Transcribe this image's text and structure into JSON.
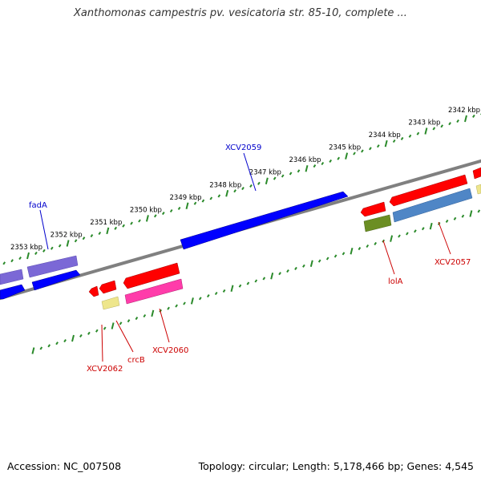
{
  "title": "Xanthomonas campestris pv. vesicatoria str. 85-10, complete ...",
  "footer": {
    "accession": "Accession: NC_007508",
    "info": "Topology: circular; Length: 5,178,466 bp; Genes: 4,545"
  },
  "ruler": {
    "unit_label": "kbp",
    "ticks": [
      {
        "kbp": 2342,
        "label": "2342 kbp"
      },
      {
        "kbp": 2343,
        "label": "2343 kbp"
      },
      {
        "kbp": 2344,
        "label": "2344 kbp"
      },
      {
        "kbp": 2345,
        "label": "2345 kbp"
      },
      {
        "kbp": 2346,
        "label": "2346 kbp"
      },
      {
        "kbp": 2347,
        "label": "2347 kbp"
      },
      {
        "kbp": 2348,
        "label": "2348 kbp"
      },
      {
        "kbp": 2349,
        "label": "2349 kbp"
      },
      {
        "kbp": 2350,
        "label": "2350 kbp"
      },
      {
        "kbp": 2351,
        "label": "2351 kbp"
      },
      {
        "kbp": 2352,
        "label": "2352 kbp"
      },
      {
        "kbp": 2353,
        "label": "2353 kbp"
      }
    ]
  },
  "gene_labels": [
    {
      "id": "fadA",
      "text": "fadA",
      "color": "#0000cc"
    },
    {
      "id": "XCV2059",
      "text": "XCV2059",
      "color": "#0000cc"
    },
    {
      "id": "lolA",
      "text": "lolA",
      "color": "#cc0000"
    },
    {
      "id": "XCV2057",
      "text": "XCV2057",
      "color": "#cc0000"
    },
    {
      "id": "XCV2060",
      "text": "XCV2060",
      "color": "#cc0000"
    },
    {
      "id": "crcB",
      "text": "crcB",
      "color": "#cc0000"
    },
    {
      "id": "XCV2062",
      "text": "XCV2062",
      "color": "#cc0000"
    }
  ],
  "colors": {
    "backbone": "#808080",
    "tick": "#2a8a2a",
    "blue": "#0000ff",
    "purple": "#7b68d6",
    "red": "#ff0000",
    "pink": "#ff3caa",
    "steelblue": "#4f86c6",
    "olive": "#6b8e23",
    "khaki": "#eee68c"
  }
}
